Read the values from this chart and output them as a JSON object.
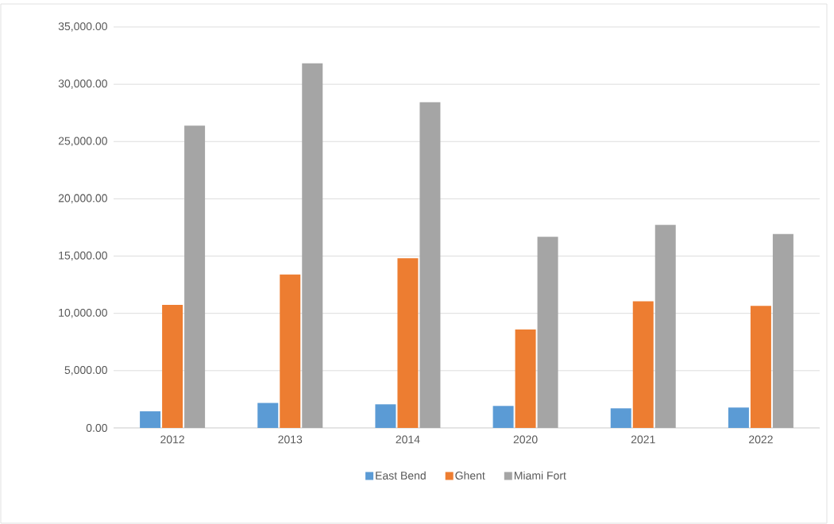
{
  "chart_data": {
    "type": "bar",
    "categories": [
      "2012",
      "2013",
      "2014",
      "2020",
      "2021",
      "2022"
    ],
    "series": [
      {
        "name": "East Bend",
        "color": "#5b9bd5",
        "values": [
          1450,
          2180,
          2060,
          1920,
          1710,
          1780
        ]
      },
      {
        "name": "Ghent",
        "color": "#ed7d31",
        "values": [
          10750,
          13390,
          14820,
          8590,
          11050,
          10650
        ]
      },
      {
        "name": "Miami Fort",
        "color": "#a5a5a5",
        "values": [
          26380,
          31830,
          28440,
          16690,
          17720,
          16920
        ]
      }
    ],
    "ylim": [
      0,
      35000
    ],
    "yticks": [
      {
        "value": 0,
        "label": "0.00"
      },
      {
        "value": 5000,
        "label": "5,000.00"
      },
      {
        "value": 10000,
        "label": "10,000.00"
      },
      {
        "value": 15000,
        "label": "15,000.00"
      },
      {
        "value": 20000,
        "label": "20,000.00"
      },
      {
        "value": 25000,
        "label": "25,000.00"
      },
      {
        "value": 30000,
        "label": "30,000.00"
      },
      {
        "value": 35000,
        "label": "35,000.00"
      }
    ],
    "grid": "y",
    "legend": "bottom"
  }
}
